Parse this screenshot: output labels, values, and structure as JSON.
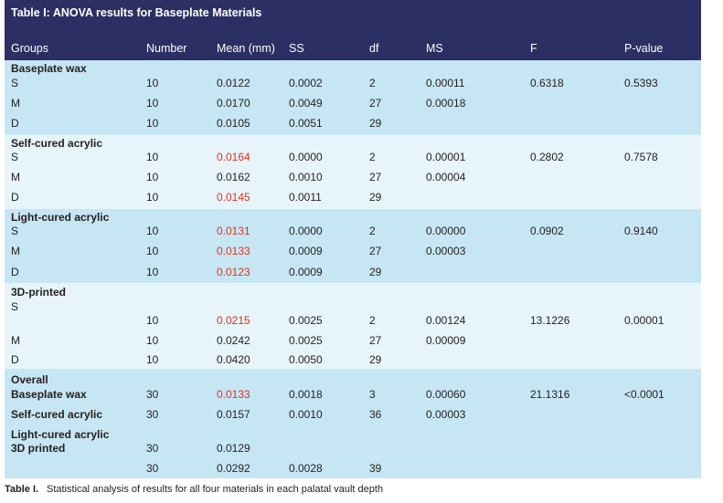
{
  "header": {
    "title": "Table I: ANOVA results for Baseplate Materials"
  },
  "table": {
    "columns": [
      "Groups",
      "Number",
      "Mean (mm)",
      "SS",
      "df",
      "MS",
      "F",
      "P-value"
    ],
    "groups": [
      {
        "name": "Baseplate wax",
        "rows": [
          [
            "S",
            "10",
            "0.0122",
            "0.0002",
            "2",
            "0.00011",
            "0.6318",
            "0.5393"
          ],
          [
            "M",
            "10",
            "0.0170",
            "0.0049",
            "27",
            "0.00018",
            null,
            null
          ],
          [
            "D",
            "10",
            "0.0105",
            "0.0051",
            "29",
            null,
            null,
            null
          ]
        ]
      },
      {
        "name": "Self-cured acrylic",
        "rows": [
          [
            "S",
            "10",
            "0.0164",
            "0.0000",
            "2",
            "0.00001",
            "0.2802",
            "0.7578"
          ],
          [
            "M",
            "10",
            "0.0162",
            "0.0010",
            "27",
            "0.00004",
            null,
            null
          ],
          [
            "D",
            "10",
            "0.0145",
            "0.0011",
            "29",
            null,
            null,
            null
          ]
        ]
      },
      {
        "name": "Light-cured acrylic",
        "rows": [
          [
            "S",
            "10",
            "0.0131",
            "0.0000",
            "2",
            "0.00000",
            "0.0902",
            "0.9140"
          ],
          [
            "M",
            "10",
            "0.0133",
            "0.0009",
            "27",
            "0.00003",
            null,
            null
          ],
          [
            "D",
            "10",
            "0.0123",
            "0.0009",
            "29",
            null,
            null,
            null
          ]
        ]
      },
      {
        "name": "3D-printed",
        "rows": [
          [
            "S",
            null,
            null,
            null,
            null,
            null,
            null,
            null
          ],
          [
            null,
            "10",
            "0.0215",
            "0.0025",
            "2",
            "0.00124",
            "13.1226",
            "0.00001"
          ],
          [
            "M",
            "10",
            "0.0242",
            "0.0025",
            "27",
            "0.00009",
            null,
            null
          ],
          [
            "D",
            "10",
            "0.0420",
            "0.0050",
            "29",
            null,
            null,
            null
          ]
        ]
      },
      {
        "name": "Overall",
        "rows": [
          [
            "Baseplate wax",
            "30",
            "0.0133",
            "0.0018",
            "3",
            "0.00060",
            "21.1316",
            "<0.0001"
          ],
          [
            "Self-cured acrylic",
            "30",
            "0.0157",
            "0.0010",
            "36",
            "0.00003",
            null,
            null
          ],
          [
            "Light-cured acrylic",
            null,
            null,
            null,
            null,
            null,
            null,
            null
          ],
          [
            "3D printed",
            "30",
            "0.0129",
            null,
            null,
            null,
            null,
            null
          ],
          [
            null,
            "30",
            "0.0292",
            "0.0028",
            "39",
            null,
            null,
            null
          ]
        ]
      }
    ]
  },
  "caption": {
    "label": "Table I.",
    "text": "Statistical analysis of results for all four materials in each palatal vault depth"
  }
}
